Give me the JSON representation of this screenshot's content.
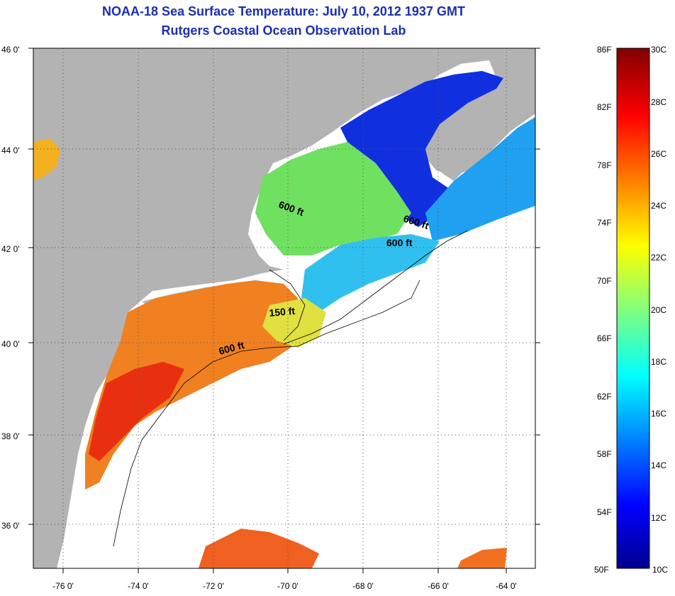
{
  "title": "NOAA-18 Sea Surface Temperature:  July 10, 2012 1937 GMT",
  "subtitle": "Rutgers Coastal Ocean Observation Lab",
  "map": {
    "lat_labels": [
      "46 0'",
      "44 0'",
      "42 0'",
      "40 0'",
      "38 0'",
      "36 0'"
    ],
    "lon_labels": [
      "-76 0'",
      "-74 0'",
      "-72 0'",
      "-70 0'",
      "-68 0'",
      "-66 0'",
      "-64 0'"
    ],
    "contour_labels": [
      "600 ft",
      "600 ft",
      "600 ft",
      "150 ft",
      "600 ft"
    ],
    "land_color": "#b3b3b3",
    "no_data_color": "#ffffff",
    "grid": "dotted"
  },
  "colorbar": {
    "f_labels": [
      "86F",
      "82F",
      "78F",
      "74F",
      "70F",
      "66F",
      "62F",
      "58F",
      "54F",
      "50F"
    ],
    "c_labels": [
      "30C",
      "28C",
      "26C",
      "24C",
      "22C",
      "20C",
      "18C",
      "16C",
      "14C",
      "12C",
      "10C"
    ],
    "colormap": "jet",
    "min_c": 10,
    "max_c": 30
  }
}
